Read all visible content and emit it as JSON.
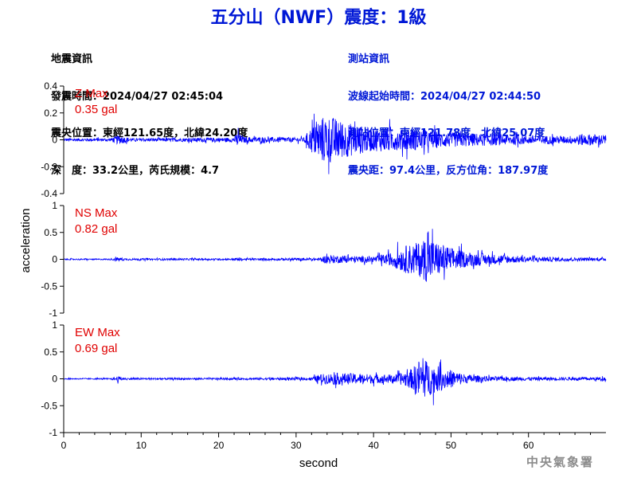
{
  "title": "五分山（NWF）震度：1級",
  "event_info": {
    "heading": "地震資訊",
    "origin_time": "發震時間：2024/04/27 02:45:04",
    "epicenter": "震央位置：東經121.65度，北緯24.20度",
    "depth_magnitude": "深　度：33.2公里，芮氏規模：4.7"
  },
  "station_info": {
    "heading": "測站資訊",
    "wave_start": "波線起始時間：2024/04/27 02:44:50",
    "station_location": "測站位置：東經121.78度，北緯25.07度",
    "distance_azimuth": "震央距：97.4公里，反方位角：187.97度"
  },
  "footer": "中央氣象署",
  "colors": {
    "trace": "#0000ff",
    "max_label": "#e00000",
    "title": "#0018d6"
  },
  "chart_data": {
    "type": "line",
    "xlabel": "second",
    "ylabel": "acceleration",
    "xlim": [
      0,
      70
    ],
    "xticks": [
      "0",
      "10",
      "20",
      "30",
      "40",
      "50",
      "60"
    ],
    "grid": false,
    "panels": [
      {
        "name": "Z",
        "max_title": "Z Max",
        "max_value": "0.35 gal",
        "ylim": [
          -0.4,
          0.4
        ],
        "yticks": [
          "0.4",
          "0.2",
          "0",
          "-0.2",
          "-0.4"
        ],
        "envelope": [
          [
            0,
            0.02
          ],
          [
            6,
            0.02
          ],
          [
            7,
            0.06
          ],
          [
            8,
            0.04
          ],
          [
            9,
            0.02
          ],
          [
            22,
            0.03
          ],
          [
            22.5,
            0.12
          ],
          [
            23,
            0.04
          ],
          [
            31,
            0.03
          ],
          [
            32,
            0.18
          ],
          [
            33,
            0.3
          ],
          [
            34,
            0.33
          ],
          [
            35,
            0.3
          ],
          [
            36,
            0.25
          ],
          [
            38,
            0.2
          ],
          [
            40,
            0.15
          ],
          [
            42,
            0.17
          ],
          [
            43,
            0.14
          ],
          [
            45,
            0.15
          ],
          [
            47,
            0.12
          ],
          [
            50,
            0.1
          ],
          [
            55,
            0.08
          ],
          [
            60,
            0.06
          ],
          [
            65,
            0.05
          ],
          [
            67,
            0.08
          ],
          [
            70,
            0.07
          ]
        ]
      },
      {
        "name": "NS",
        "max_title": "NS Max",
        "max_value": "0.82 gal",
        "ylim": [
          -1,
          1
        ],
        "yticks": [
          "1",
          "0.5",
          "0",
          "-0.5",
          "-1"
        ],
        "envelope": [
          [
            0,
            0.02
          ],
          [
            6,
            0.02
          ],
          [
            7,
            0.07
          ],
          [
            8,
            0.03
          ],
          [
            22,
            0.03
          ],
          [
            22.5,
            0.08
          ],
          [
            23,
            0.03
          ],
          [
            33,
            0.05
          ],
          [
            34,
            0.15
          ],
          [
            36,
            0.12
          ],
          [
            40,
            0.1
          ],
          [
            42,
            0.2
          ],
          [
            44,
            0.45
          ],
          [
            46,
            0.6
          ],
          [
            47,
            0.8
          ],
          [
            48,
            0.6
          ],
          [
            50,
            0.4
          ],
          [
            52,
            0.25
          ],
          [
            55,
            0.18
          ],
          [
            58,
            0.12
          ],
          [
            62,
            0.08
          ],
          [
            66,
            0.06
          ],
          [
            70,
            0.05
          ]
        ]
      },
      {
        "name": "EW",
        "max_title": "EW Max",
        "max_value": "0.69 gal",
        "ylim": [
          -1,
          1
        ],
        "yticks": [
          "1",
          "0.5",
          "0",
          "-0.5",
          "-1"
        ],
        "envelope": [
          [
            0,
            0.02
          ],
          [
            6,
            0.02
          ],
          [
            7,
            0.09
          ],
          [
            8,
            0.03
          ],
          [
            22,
            0.03
          ],
          [
            22.5,
            0.05
          ],
          [
            23,
            0.03
          ],
          [
            32,
            0.05
          ],
          [
            33,
            0.15
          ],
          [
            35,
            0.2
          ],
          [
            38,
            0.18
          ],
          [
            40,
            0.15
          ],
          [
            43,
            0.15
          ],
          [
            45,
            0.35
          ],
          [
            46,
            0.7
          ],
          [
            47,
            0.6
          ],
          [
            48,
            0.45
          ],
          [
            50,
            0.3
          ],
          [
            52,
            0.15
          ],
          [
            55,
            0.08
          ],
          [
            60,
            0.06
          ],
          [
            65,
            0.05
          ],
          [
            70,
            0.06
          ]
        ]
      }
    ]
  }
}
